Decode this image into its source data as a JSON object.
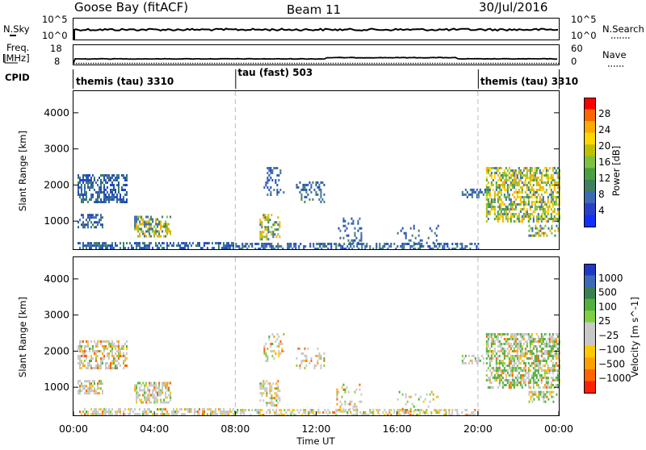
{
  "header": {
    "station": "Goose Bay (fitACF)",
    "beam": "Beam 11",
    "date": "30/Jul/2016"
  },
  "left_labels": {
    "nsky": "N.Sky",
    "nsky_top": "10^5",
    "nsky_bottom": "10^0",
    "freq": "Freq.",
    "freq_unit": "[MHz]",
    "freq_top": "18",
    "freq_bottom": "8",
    "cpid": "CPID"
  },
  "right_labels": {
    "nsearch": "N.Search",
    "nsearch_top": "10^5",
    "nsearch_bottom": "10^0",
    "nave": "Nave",
    "nave_top": "60",
    "nave_bottom": "0"
  },
  "cpid_segments": [
    {
      "label": "themis (tau) 3310",
      "start_hour": 0
    },
    {
      "label": "tau (fast) 503",
      "start_hour": 8
    },
    {
      "label": "themis (tau) 3310",
      "start_hour": 20
    }
  ],
  "chart_data": [
    {
      "type": "heatmap",
      "name": "power",
      "ylabel": "Slant Range [km]",
      "yticks": [
        "4000",
        "3000",
        "2000",
        "1000"
      ],
      "ylim": [
        200,
        4600
      ],
      "xlim_hours": [
        0,
        24
      ],
      "colorbar_label": "Power [dB]",
      "colorbar_ticks": [
        "28",
        "24",
        "20",
        "16",
        "12",
        "8",
        "4"
      ],
      "colorbar_colors": [
        "#ff0000",
        "#ff6600",
        "#ffaa00",
        "#ffd700",
        "#c0c000",
        "#7ec040",
        "#4aa040",
        "#408060",
        "#3c6ab4",
        "#2840c8",
        "#1030ff"
      ],
      "clusters": [
        {
          "t0": 0.2,
          "t1": 2.6,
          "r0": 1500,
          "r1": 2300,
          "level": "low",
          "density": 0.55
        },
        {
          "t0": 0.2,
          "t1": 1.4,
          "r0": 800,
          "r1": 1200,
          "level": "low",
          "density": 0.55
        },
        {
          "t0": 3.0,
          "t1": 4.8,
          "r0": 600,
          "r1": 1150,
          "level": "mid",
          "density": 0.6
        },
        {
          "t0": 0.2,
          "t1": 8.0,
          "r0": 250,
          "r1": 420,
          "level": "low",
          "density": 0.55
        },
        {
          "t0": 8.0,
          "t1": 20.0,
          "r0": 250,
          "r1": 400,
          "level": "low",
          "density": 0.5
        },
        {
          "t0": 9.2,
          "t1": 10.2,
          "r0": 500,
          "r1": 1200,
          "level": "mid",
          "density": 0.5
        },
        {
          "t0": 9.4,
          "t1": 10.4,
          "r0": 1700,
          "r1": 2500,
          "level": "low",
          "density": 0.3
        },
        {
          "t0": 11.0,
          "t1": 12.4,
          "r0": 1500,
          "r1": 2100,
          "level": "low",
          "density": 0.25
        },
        {
          "t0": 13.0,
          "t1": 14.2,
          "r0": 350,
          "r1": 1100,
          "level": "low",
          "density": 0.22
        },
        {
          "t0": 16.0,
          "t1": 18.0,
          "r0": 350,
          "r1": 900,
          "level": "low",
          "density": 0.15
        },
        {
          "t0": 19.2,
          "t1": 20.4,
          "r0": 1650,
          "r1": 1900,
          "level": "low",
          "density": 0.45
        },
        {
          "t0": 20.4,
          "t1": 24.0,
          "r0": 1000,
          "r1": 2500,
          "level": "high",
          "density": 0.6
        },
        {
          "t0": 22.5,
          "t1": 24.0,
          "r0": 600,
          "r1": 900,
          "level": "mid",
          "density": 0.45
        }
      ]
    },
    {
      "type": "heatmap",
      "name": "velocity",
      "ylabel": "Slant Range [km]",
      "yticks": [
        "4000",
        "3000",
        "2000",
        "1000"
      ],
      "ylim": [
        200,
        4600
      ],
      "xlim_hours": [
        0,
        24
      ],
      "xticks": [
        "00:00",
        "04:00",
        "08:00",
        "12:00",
        "16:00",
        "20:00",
        "00:00"
      ],
      "xlabel": "Time UT",
      "colorbar_label": "Velocity [m s^-1]",
      "colorbar_ticks": [
        "1000",
        "500",
        "100",
        "25",
        "−25",
        "−100",
        "−500",
        "−1000"
      ],
      "colorbar_colors": [
        "#2038c8",
        "#3c6ab4",
        "#3a8050",
        "#50b040",
        "#7ed040",
        "#c8c8c8",
        "#c8c8c8",
        "#ffc800",
        "#ffa000",
        "#ff6400",
        "#ff2000"
      ],
      "dominant_color": "#c8c8c8"
    }
  ]
}
